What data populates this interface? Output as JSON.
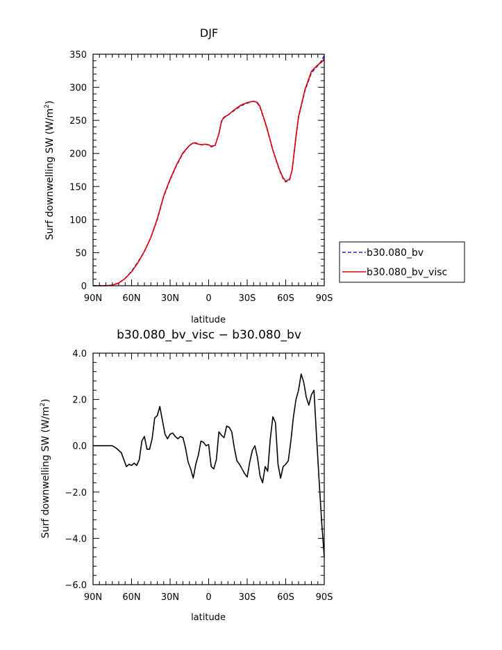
{
  "chart_data": [
    {
      "type": "line",
      "title": "DJF",
      "xlabel": "latitude",
      "ylabel": "Surf downwelling SW (W/m²)",
      "ylabel_main": "Surf downwelling SW (W/m",
      "ylabel_sup": "2",
      "ylabel_close": ")",
      "xlim": [
        -90,
        90
      ],
      "ylim": [
        0,
        350
      ],
      "xticks": [
        -90,
        -60,
        -30,
        0,
        30,
        60,
        90
      ],
      "xticklabels": [
        "90N",
        "60N",
        "30N",
        "0",
        "30S",
        "60S",
        "90S"
      ],
      "yticks": [
        0,
        50,
        100,
        150,
        200,
        250,
        300,
        350
      ],
      "yticklabels": [
        "0",
        "50",
        "100",
        "150",
        "200",
        "250",
        "300",
        "350"
      ],
      "legend_position": "right",
      "series": [
        {
          "name": "b30.080_bv",
          "color": "#1a1acc",
          "style": "dashed",
          "x": [
            -90,
            -85,
            -80,
            -75,
            -70,
            -65,
            -60,
            -55,
            -50,
            -45,
            -40,
            -35,
            -30,
            -25,
            -20,
            -15,
            -12,
            -10,
            -8,
            -5,
            -3,
            0,
            2,
            5,
            8,
            10,
            12,
            15,
            20,
            25,
            30,
            35,
            38,
            40,
            45,
            50,
            55,
            58,
            60,
            63,
            65,
            68,
            70,
            75,
            80,
            85,
            88,
            90
          ],
          "values": [
            0,
            0,
            0,
            1,
            4,
            11,
            22,
            36,
            52,
            73,
            100,
            135,
            160,
            182,
            200,
            212,
            216,
            216,
            214,
            213,
            214,
            213,
            210,
            212,
            230,
            248,
            254,
            258,
            265,
            272,
            276,
            279,
            276,
            270,
            240,
            205,
            175,
            162,
            157,
            160,
            175,
            225,
            255,
            295,
            322,
            333,
            340,
            348
          ]
        },
        {
          "name": "b30.080_bv_visc",
          "color": "#dd0000",
          "style": "solid",
          "x": [
            -90,
            -85,
            -80,
            -75,
            -70,
            -65,
            -60,
            -55,
            -50,
            -45,
            -40,
            -35,
            -30,
            -25,
            -20,
            -15,
            -12,
            -10,
            -8,
            -5,
            -3,
            0,
            2,
            5,
            8,
            10,
            12,
            15,
            20,
            25,
            30,
            35,
            38,
            40,
            45,
            50,
            55,
            58,
            60,
            63,
            65,
            68,
            70,
            75,
            80,
            85,
            88,
            90
          ],
          "values": [
            0,
            0,
            0,
            1,
            4,
            11,
            21,
            35,
            52,
            73,
            101,
            136,
            161,
            183,
            201,
            212,
            216,
            215,
            214,
            213,
            214,
            213,
            211,
            212,
            230,
            249,
            255,
            258,
            266,
            273,
            277,
            279,
            277,
            271,
            241,
            205,
            176,
            163,
            158,
            161,
            175,
            226,
            256,
            297,
            324,
            334,
            338,
            343
          ]
        }
      ]
    },
    {
      "type": "line",
      "title": "b30.080_bv_visc − b30.080_bv",
      "xlabel": "latitude",
      "ylabel": "Surf downwelling SW (W/m²)",
      "ylabel_main": "Surf downwelling SW (W/m",
      "ylabel_sup": "2",
      "ylabel_close": ")",
      "xlim": [
        -90,
        90
      ],
      "ylim": [
        -6,
        4
      ],
      "xticks": [
        -90,
        -60,
        -30,
        0,
        30,
        60,
        90
      ],
      "xticklabels": [
        "90N",
        "60N",
        "30N",
        "0",
        "30S",
        "60S",
        "90S"
      ],
      "yticks": [
        -6,
        -4,
        -2,
        0,
        2,
        4
      ],
      "yticklabels": [
        "−6.0",
        "−4.0",
        "−2.0",
        "0.0",
        "2.0",
        "4.0"
      ],
      "series": [
        {
          "color": "#000000",
          "style": "solid",
          "x": [
            -90,
            -85,
            -80,
            -75,
            -72,
            -70,
            -68,
            -66,
            -64,
            -62,
            -60,
            -58,
            -56,
            -54,
            -52,
            -50,
            -48,
            -46,
            -44,
            -42,
            -40,
            -38,
            -36,
            -34,
            -32,
            -30,
            -28,
            -26,
            -24,
            -22,
            -20,
            -18,
            -16,
            -14,
            -12,
            -10,
            -8,
            -6,
            -4,
            -2,
            0,
            2,
            4,
            6,
            8,
            10,
            12,
            14,
            16,
            18,
            20,
            22,
            24,
            26,
            28,
            30,
            32,
            34,
            36,
            38,
            40,
            42,
            44,
            46,
            48,
            50,
            52,
            54,
            56,
            58,
            60,
            62,
            64,
            66,
            68,
            70,
            72,
            74,
            76,
            78,
            80,
            82,
            84,
            86,
            88,
            90
          ],
          "values": [
            0,
            0,
            0,
            0,
            -0.1,
            -0.2,
            -0.3,
            -0.6,
            -0.9,
            -0.8,
            -0.85,
            -0.75,
            -0.85,
            -0.6,
            0.2,
            0.4,
            -0.15,
            -0.15,
            0.3,
            1.2,
            1.3,
            1.7,
            1.1,
            0.5,
            0.3,
            0.5,
            0.55,
            0.4,
            0.3,
            0.4,
            0.35,
            -0.1,
            -0.7,
            -1.0,
            -1.4,
            -0.8,
            -0.4,
            0.2,
            0.15,
            0.0,
            0.05,
            -0.9,
            -1.0,
            -0.6,
            0.6,
            0.45,
            0.35,
            0.85,
            0.8,
            0.6,
            -0.1,
            -0.65,
            -0.8,
            -1.0,
            -1.2,
            -1.35,
            -0.7,
            -0.2,
            0.0,
            -0.5,
            -1.3,
            -1.6,
            -0.9,
            -1.1,
            0.3,
            1.25,
            1.0,
            -0.8,
            -1.4,
            -0.9,
            -0.8,
            -0.65,
            0.2,
            1.25,
            2.0,
            2.4,
            3.1,
            2.75,
            2.1,
            1.75,
            2.2,
            2.4,
            0.4,
            -1.5,
            -3.3,
            -4.8
          ]
        }
      ]
    }
  ]
}
